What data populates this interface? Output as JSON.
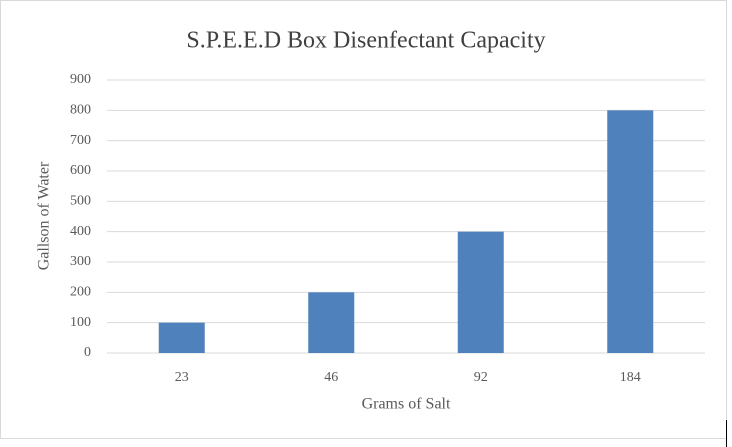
{
  "chart_data": {
    "type": "bar",
    "title": "S.P.E.E.D Box Disenfectant Capacity",
    "x_label": "Grams of Salt",
    "y_label": "Gallson of Water",
    "categories": [
      "23",
      "46",
      "92",
      "184"
    ],
    "values": [
      100,
      200,
      400,
      800
    ],
    "color": "#4f81bd",
    "ylim": [
      0,
      900
    ],
    "yticks": [
      0,
      100,
      200,
      300,
      400,
      500,
      600,
      700,
      800,
      900
    ],
    "grid": true
  }
}
